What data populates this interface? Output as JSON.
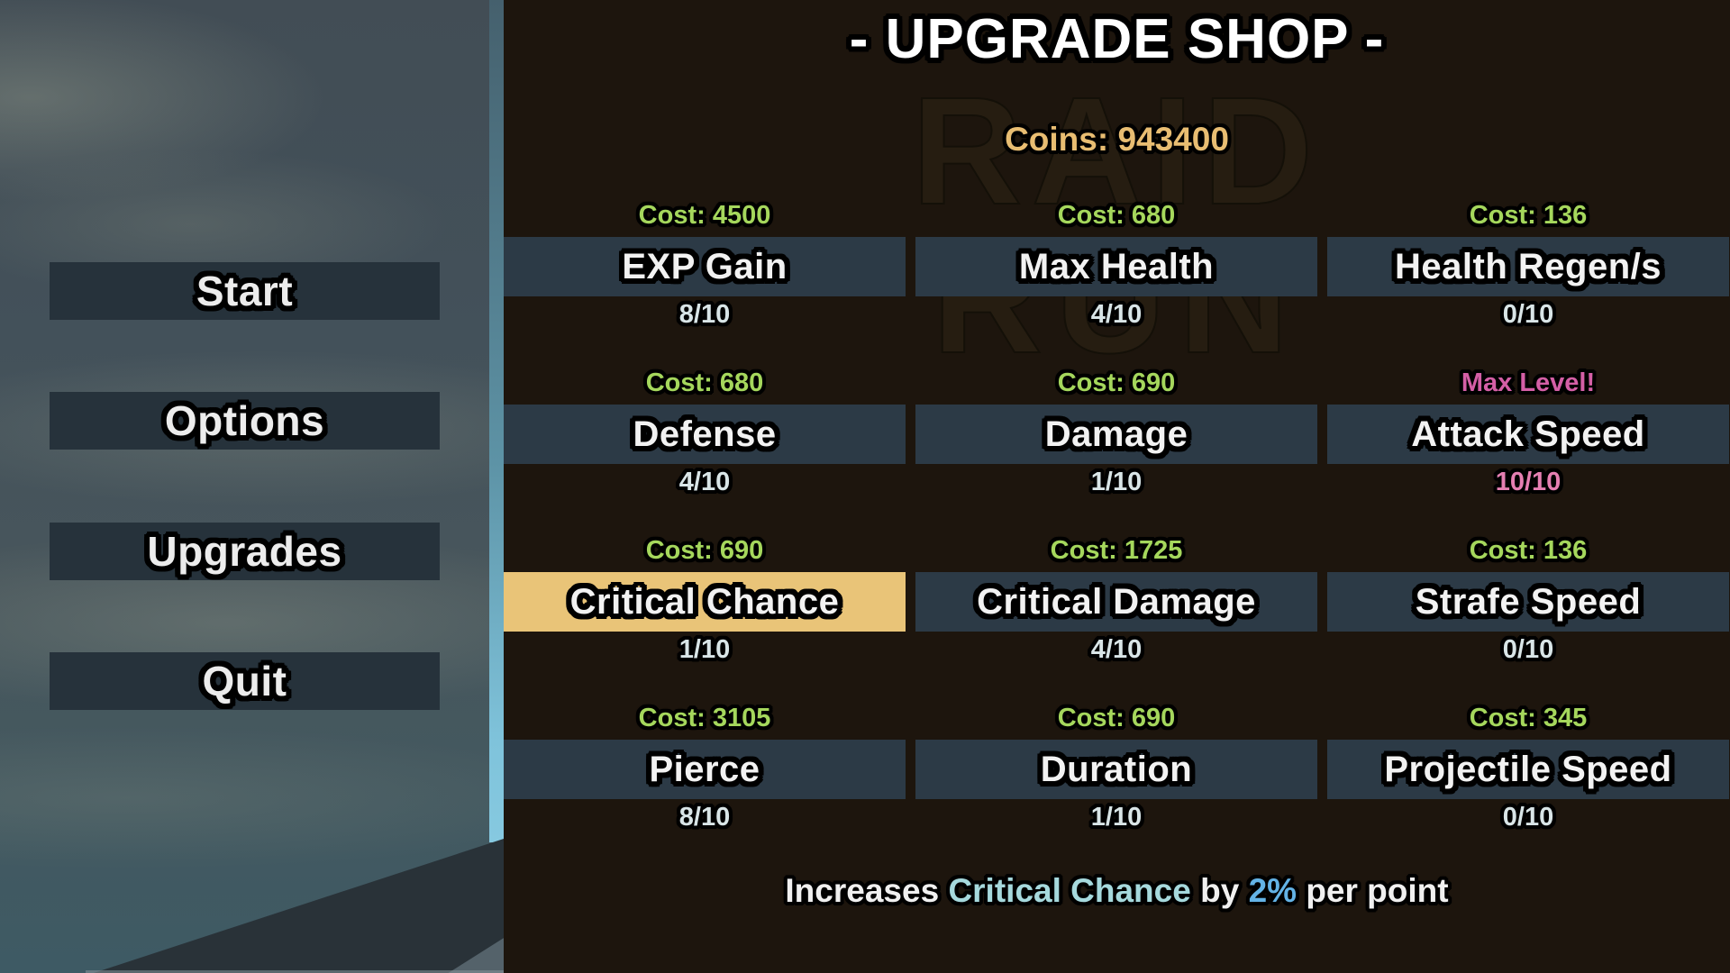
{
  "menu": {
    "items": [
      {
        "label": "Start"
      },
      {
        "label": "Options"
      },
      {
        "label": "Upgrades"
      },
      {
        "label": "Quit"
      }
    ]
  },
  "shop": {
    "title": "- UPGRADE SHOP -",
    "watermark_line1": "RAID",
    "watermark_line2": "RUN",
    "coins_label": "Coins: 943400",
    "upgrades": [
      {
        "name": "EXP Gain",
        "cost": "Cost: 4500",
        "level": "8/10",
        "state": "normal"
      },
      {
        "name": "Max Health",
        "cost": "Cost: 680",
        "level": "4/10",
        "state": "normal"
      },
      {
        "name": "Health Regen/s",
        "cost": "Cost: 136",
        "level": "0/10",
        "state": "normal"
      },
      {
        "name": "Defense",
        "cost": "Cost: 680",
        "level": "4/10",
        "state": "normal"
      },
      {
        "name": "Damage",
        "cost": "Cost: 690",
        "level": "1/10",
        "state": "normal"
      },
      {
        "name": "Attack Speed",
        "cost": "Max Level!",
        "level": "10/10",
        "state": "maxed"
      },
      {
        "name": "Critical Chance",
        "cost": "Cost: 690",
        "level": "1/10",
        "state": "selected"
      },
      {
        "name": "Critical Damage",
        "cost": "Cost: 1725",
        "level": "4/10",
        "state": "normal"
      },
      {
        "name": "Strafe Speed",
        "cost": "Cost: 136",
        "level": "0/10",
        "state": "normal"
      },
      {
        "name": "Pierce",
        "cost": "Cost: 3105",
        "level": "8/10",
        "state": "normal"
      },
      {
        "name": "Duration",
        "cost": "Cost: 690",
        "level": "1/10",
        "state": "normal"
      },
      {
        "name": "Projectile Speed",
        "cost": "Cost: 345",
        "level": "0/10",
        "state": "normal"
      }
    ],
    "description": {
      "prefix": "Increases ",
      "stat": "Critical Chance",
      "middle": " by ",
      "value": "2%",
      "suffix": " per point"
    }
  },
  "colors": {
    "cost_green": "#a5d75c",
    "coins_gold": "#e8bd72",
    "selected_gold": "#e9c478",
    "max_level_pink": "#d45fa6",
    "max_count_pink": "#e57fb2",
    "stat_cyan": "#a6d9dd",
    "value_blue": "#63b3e6",
    "tile_bar": "#2c3a46",
    "menu_bar": "#26323b"
  }
}
